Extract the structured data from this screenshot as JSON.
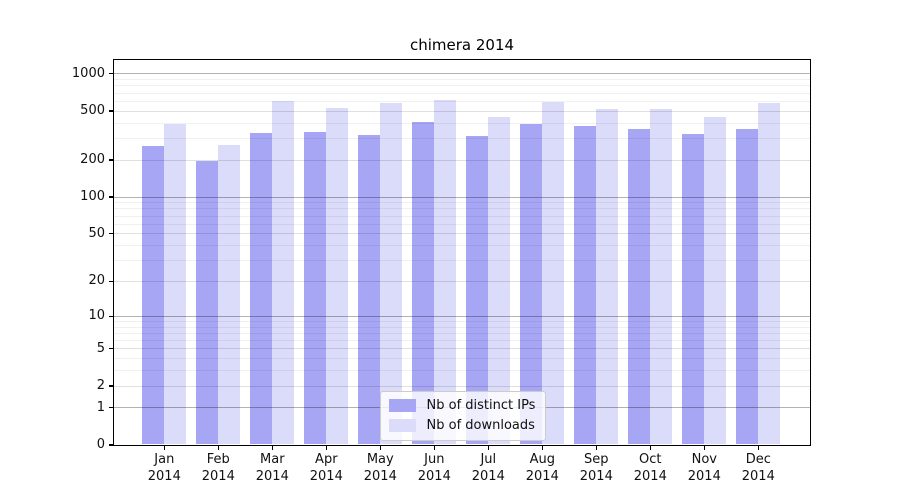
{
  "figure": {
    "background": "#ffffff",
    "frame_color": "#000000",
    "grid_major_color": "#b2b2b2",
    "grid_minor_color": "#efefef"
  },
  "chart_data": {
    "type": "bar",
    "title": "chimera 2014",
    "xlabel": "",
    "ylabel": "",
    "categories": [
      "Jan",
      "Feb",
      "Mar",
      "Apr",
      "May",
      "Jun",
      "Jul",
      "Aug",
      "Sep",
      "Oct",
      "Nov",
      "Dec"
    ],
    "category_year": "2014",
    "series": [
      {
        "name": "Nb of distinct IPs",
        "color": "#a6a6f5",
        "values": [
          260,
          193,
          331,
          333,
          315,
          400,
          310,
          386,
          373,
          356,
          325,
          356
        ]
      },
      {
        "name": "Nb of downloads",
        "color": "#dbdbfa",
        "values": [
          386,
          265,
          595,
          520,
          578,
          614,
          447,
          589,
          510,
          510,
          447,
          570
        ]
      }
    ],
    "y_scale": "log1p",
    "ylim": [
      0,
      1294
    ],
    "y_ticks": [
      0,
      1,
      2,
      5,
      10,
      20,
      50,
      100,
      200,
      500,
      1000
    ],
    "y_decade_ticks": [
      1,
      10,
      100,
      1000
    ],
    "y_minor_gridlines": [
      3,
      4,
      6,
      7,
      8,
      9,
      30,
      40,
      60,
      70,
      80,
      90,
      300,
      400,
      600,
      700,
      800,
      900
    ],
    "grid": true,
    "legend_position": "lower center"
  },
  "legend": {
    "items": [
      {
        "label": "Nb of distinct IPs"
      },
      {
        "label": "Nb of downloads"
      }
    ]
  }
}
